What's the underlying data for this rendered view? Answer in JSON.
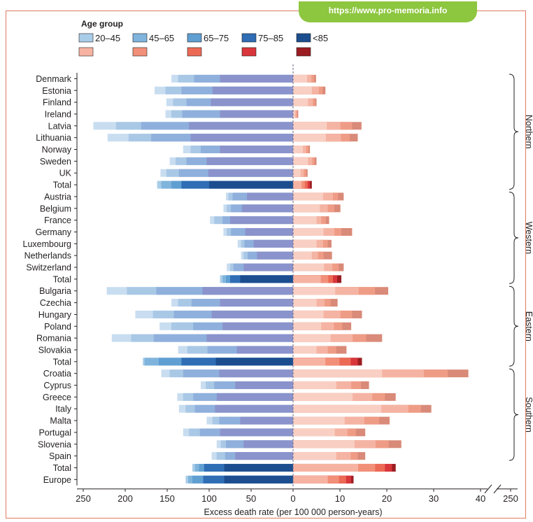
{
  "banner": {
    "url": "https://www.pro-memoria.info"
  },
  "chart_data": {
    "type": "bar",
    "title": "",
    "xlabel": "Excess death rate (per 100 000 person-years)",
    "legend": {
      "title": "Age group",
      "labels": [
        "20–45",
        "45–65",
        "65–75",
        "75–85",
        "<85"
      ],
      "male_colors": [
        "#a9cde8",
        "#7fb4dc",
        "#5f9fd2",
        "#2f6db4",
        "#1c4e8f"
      ],
      "female_colors": [
        "#f7b3a2",
        "#f28f78",
        "#ec6a55",
        "#d9363b",
        "#9b1d22"
      ]
    },
    "x_axis": {
      "left_ticks": [
        "250",
        "200",
        "150",
        "100",
        "50",
        "0"
      ],
      "right_ticks": [
        "10",
        "20",
        "30",
        "40",
        "250"
      ],
      "left_range": [
        250,
        0
      ],
      "right_range": [
        0,
        40
      ],
      "right_break_value": 250
    },
    "groups": [
      {
        "name": "Northern",
        "rows": [
          0,
          9
        ]
      },
      {
        "name": "Western",
        "rows": [
          10,
          17
        ]
      },
      {
        "name": "Eastern",
        "rows": [
          18,
          24
        ]
      },
      {
        "name": "Southern",
        "rows": [
          25,
          32
        ]
      }
    ],
    "countries": [
      {
        "name": "Denmark",
        "male": [
          145,
          137,
          118,
          87
        ],
        "female": [
          3,
          3.9,
          4.5,
          4.9
        ]
      },
      {
        "name": "Estonia",
        "male": [
          165,
          152,
          133,
          96
        ],
        "female": [
          4,
          5.5,
          6.3,
          6.9
        ]
      },
      {
        "name": "Finland",
        "male": [
          151,
          143,
          127,
          98
        ],
        "female": [
          3.2,
          4.2,
          4.7,
          5
        ]
      },
      {
        "name": "Ireland",
        "male": [
          152,
          145,
          132,
          87
        ],
        "female": [
          0.4,
          0.7,
          0.9,
          1.1
        ]
      },
      {
        "name": "Latvia",
        "male": [
          238,
          211,
          181,
          124
        ],
        "female": [
          7.2,
          10.1,
          12.6,
          14.6
        ]
      },
      {
        "name": "Lithuania",
        "male": [
          221,
          196,
          169,
          122
        ],
        "female": [
          7,
          10.2,
          12.1,
          13.8
        ]
      },
      {
        "name": "Norway",
        "male": [
          131,
          122,
          110,
          87
        ],
        "female": [
          2.1,
          2.8,
          3.3,
          3.6
        ]
      },
      {
        "name": "Sweden",
        "male": [
          147,
          140,
          127,
          103
        ],
        "female": [
          3.2,
          4.1,
          4.6,
          5
        ]
      },
      {
        "name": "UK",
        "male": [
          158,
          151,
          136,
          101
        ],
        "female": [
          1.6,
          2.3,
          2.8,
          3.1
        ]
      },
      {
        "name": "Total",
        "male": [
          162,
          157,
          145,
          133,
          100
        ],
        "female": [
          1.8,
          2.5,
          3.1,
          3.6,
          4
        ]
      },
      {
        "name": "Austria",
        "male": [
          80,
          77,
          72,
          55
        ],
        "female": [
          6.4,
          8.5,
          9.6,
          10.8
        ]
      },
      {
        "name": "Belgium",
        "male": [
          83,
          79,
          74,
          61
        ],
        "female": [
          5.7,
          7.4,
          8.8,
          10.1
        ]
      },
      {
        "name": "France",
        "male": [
          99,
          94,
          84,
          75
        ],
        "female": [
          5,
          6,
          7,
          7.7
        ]
      },
      {
        "name": "Germany",
        "male": [
          83,
          79,
          74,
          57
        ],
        "female": [
          6.5,
          8.8,
          10.3,
          12.6
        ]
      },
      {
        "name": "Luxembourg",
        "male": [
          66,
          62,
          58,
          47
        ],
        "female": [
          5,
          6.4,
          7.4,
          8.2
        ]
      },
      {
        "name": "Netherlands",
        "male": [
          62,
          59,
          54,
          43
        ],
        "female": [
          4,
          5.3,
          6.5,
          8.3
        ]
      },
      {
        "name": "Switzerland",
        "male": [
          79,
          75,
          71,
          59
        ],
        "female": [
          6.6,
          8.4,
          9.7,
          10.8
        ]
      },
      {
        "name": "Total",
        "male": [
          87,
          84,
          80,
          75,
          63
        ],
        "female": [
          5.9,
          7.5,
          8.5,
          9.4,
          10.3
        ]
      },
      {
        "name": "Bulgaria",
        "male": [
          222,
          198,
          163,
          108
        ],
        "female": [
          9,
          14,
          17.5,
          20.3
        ]
      },
      {
        "name": "Czechia",
        "male": [
          145,
          137,
          121,
          87
        ],
        "female": [
          5,
          6.7,
          8,
          9.5
        ]
      },
      {
        "name": "Hungary",
        "male": [
          188,
          167,
          142,
          97
        ],
        "female": [
          6.5,
          10.1,
          12.6,
          14.7
        ]
      },
      {
        "name": "Poland",
        "male": [
          159,
          145,
          119,
          84
        ],
        "female": [
          6,
          8.7,
          10.5,
          12.4
        ]
      },
      {
        "name": "Romania",
        "male": [
          216,
          193,
          166,
          103
        ],
        "female": [
          8,
          12.7,
          15.6,
          19
        ]
      },
      {
        "name": "Slovakia",
        "male": [
          137,
          126,
          102,
          67
        ],
        "female": [
          5,
          7.4,
          9.2,
          11.4
        ]
      },
      {
        "name": "Total",
        "male": [
          179,
          177,
          160,
          133,
          92
        ],
        "female": [
          6.9,
          9.9,
          12.3,
          13.8,
          14.7
        ]
      },
      {
        "name": "Croatia",
        "male": [
          157,
          147,
          131,
          88
        ],
        "female": [
          19,
          27.9,
          33,
          37.4
        ]
      },
      {
        "name": "Cyprus",
        "male": [
          110,
          104,
          94,
          69
        ],
        "female": [
          9.2,
          12.4,
          14.5,
          16.2
        ]
      },
      {
        "name": "Greece",
        "male": [
          138,
          131,
          119,
          91
        ],
        "female": [
          12.7,
          16.9,
          19.6,
          21.9
        ]
      },
      {
        "name": "Italy",
        "male": [
          136,
          128,
          117,
          93
        ],
        "female": [
          18.8,
          24.6,
          27.3,
          29.5
        ]
      },
      {
        "name": "Malta",
        "male": [
          103,
          96,
          88,
          63
        ],
        "female": [
          11,
          15.2,
          18.4,
          20.6
        ]
      },
      {
        "name": "Portugal",
        "male": [
          131,
          124,
          111,
          87
        ],
        "female": [
          8.9,
          11.6,
          13.4,
          15.4
        ]
      },
      {
        "name": "Slovenia",
        "male": [
          91,
          86,
          80,
          59
        ],
        "female": [
          13.1,
          17.6,
          20.4,
          23.1
        ]
      },
      {
        "name": "Spain",
        "male": [
          97,
          91,
          81,
          69
        ],
        "female": [
          9.2,
          12.3,
          13.8,
          15.4
        ]
      },
      {
        "name": "Total",
        "male": [
          120,
          117,
          112,
          106,
          82
        ],
        "female": [
          13.9,
          17.5,
          19.6,
          21.1,
          21.9
        ]
      },
      {
        "name": "Europe",
        "male": [
          128,
          125,
          120,
          107,
          82
        ],
        "female": [
          7.4,
          9.8,
          11.3,
          12.4,
          12.9
        ]
      }
    ]
  }
}
